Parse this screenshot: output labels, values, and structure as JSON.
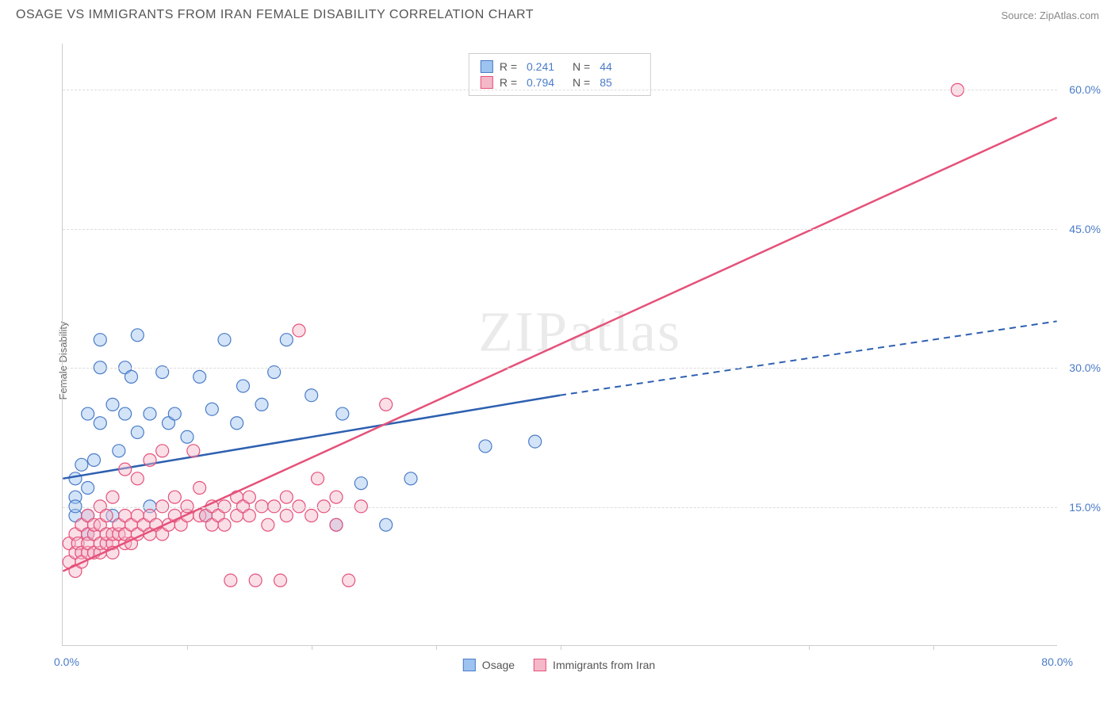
{
  "title": "OSAGE VS IMMIGRANTS FROM IRAN FEMALE DISABILITY CORRELATION CHART",
  "source_label": "Source: ZipAtlas.com",
  "watermark": "ZIPatlas",
  "y_axis_label": "Female Disability",
  "chart": {
    "type": "scatter",
    "xlim": [
      0,
      80
    ],
    "ylim": [
      0,
      65
    ],
    "x_ticks_minor": [
      10,
      20,
      30,
      40,
      60,
      70
    ],
    "x_ticks_major": [
      0,
      80
    ],
    "x_tick_labels": {
      "0": "0.0%",
      "80": "80.0%"
    },
    "y_gridlines": [
      15,
      30,
      45,
      60
    ],
    "y_tick_labels": {
      "15": "15.0%",
      "30": "30.0%",
      "45": "45.0%",
      "60": "60.0%"
    },
    "grid_color": "#dddddd",
    "axis_color": "#cccccc",
    "label_color": "#4a7bc8",
    "background_color": "#ffffff",
    "marker_radius": 8,
    "marker_opacity": 0.45,
    "marker_stroke_width": 1.2
  },
  "series": [
    {
      "name": "Osage",
      "label": "Osage",
      "fill_color": "#9dc3f0",
      "stroke_color": "#4a7bc8",
      "R": "0.241",
      "N": "44",
      "trend": {
        "solid": {
          "x1": 0,
          "y1": 18.0,
          "x2": 40,
          "y2": 27.0
        },
        "dashed": {
          "x1": 40,
          "y1": 27.0,
          "x2": 80,
          "y2": 35.0
        },
        "color": "#2d5fb0",
        "width": 2.5
      },
      "points": [
        [
          1,
          14
        ],
        [
          1,
          16
        ],
        [
          1,
          18
        ],
        [
          1.5,
          19.5
        ],
        [
          1,
          15
        ],
        [
          2,
          12
        ],
        [
          2,
          14
        ],
        [
          2,
          17
        ],
        [
          2,
          25
        ],
        [
          2.5,
          20
        ],
        [
          3,
          24
        ],
        [
          3,
          30
        ],
        [
          3,
          33
        ],
        [
          4,
          26
        ],
        [
          4,
          14
        ],
        [
          4.5,
          21
        ],
        [
          5,
          30
        ],
        [
          5,
          25
        ],
        [
          5.5,
          29
        ],
        [
          6,
          23
        ],
        [
          6,
          33.5
        ],
        [
          7,
          25
        ],
        [
          7,
          15
        ],
        [
          8,
          29.5
        ],
        [
          8.5,
          24
        ],
        [
          9,
          25
        ],
        [
          10,
          22.5
        ],
        [
          11,
          29
        ],
        [
          11.5,
          14
        ],
        [
          12,
          25.5
        ],
        [
          13,
          33
        ],
        [
          14,
          24
        ],
        [
          14.5,
          28
        ],
        [
          16,
          26
        ],
        [
          17,
          29.5
        ],
        [
          18,
          33
        ],
        [
          20,
          27
        ],
        [
          22,
          13
        ],
        [
          22.5,
          25
        ],
        [
          24,
          17.5
        ],
        [
          26,
          13
        ],
        [
          28,
          18
        ],
        [
          34,
          21.5
        ],
        [
          38,
          22
        ]
      ]
    },
    {
      "name": "Immigrants from Iran",
      "label": "Immigrants from Iran",
      "fill_color": "#f5b8c9",
      "stroke_color": "#e5517a",
      "R": "0.794",
      "N": "85",
      "trend": {
        "solid": {
          "x1": 0,
          "y1": 8.0,
          "x2": 80,
          "y2": 57.0
        },
        "dashed": null,
        "color": "#e5517a",
        "width": 2.5
      },
      "points": [
        [
          0.5,
          9
        ],
        [
          0.5,
          11
        ],
        [
          1,
          10
        ],
        [
          1,
          12
        ],
        [
          1,
          8
        ],
        [
          1.2,
          11
        ],
        [
          1.5,
          10
        ],
        [
          1.5,
          13
        ],
        [
          1.5,
          9
        ],
        [
          2,
          10
        ],
        [
          2,
          12
        ],
        [
          2,
          14
        ],
        [
          2,
          11
        ],
        [
          2.5,
          10
        ],
        [
          2.5,
          12
        ],
        [
          2.5,
          13
        ],
        [
          3,
          10
        ],
        [
          3,
          11
        ],
        [
          3,
          13
        ],
        [
          3,
          15
        ],
        [
          3.5,
          11
        ],
        [
          3.5,
          12
        ],
        [
          3.5,
          14
        ],
        [
          4,
          11
        ],
        [
          4,
          12
        ],
        [
          4,
          10
        ],
        [
          4,
          16
        ],
        [
          4.5,
          12
        ],
        [
          4.5,
          13
        ],
        [
          5,
          11
        ],
        [
          5,
          12
        ],
        [
          5,
          14
        ],
        [
          5,
          19
        ],
        [
          5.5,
          13
        ],
        [
          5.5,
          11
        ],
        [
          6,
          12
        ],
        [
          6,
          14
        ],
        [
          6,
          18
        ],
        [
          6.5,
          13
        ],
        [
          7,
          12
        ],
        [
          7,
          14
        ],
        [
          7,
          20
        ],
        [
          7.5,
          13
        ],
        [
          8,
          12
        ],
        [
          8,
          15
        ],
        [
          8,
          21
        ],
        [
          8.5,
          13
        ],
        [
          9,
          14
        ],
        [
          9,
          16
        ],
        [
          9.5,
          13
        ],
        [
          10,
          14
        ],
        [
          10,
          15
        ],
        [
          10.5,
          21
        ],
        [
          11,
          14
        ],
        [
          11,
          17
        ],
        [
          11.5,
          14
        ],
        [
          12,
          15
        ],
        [
          12,
          13
        ],
        [
          12.5,
          14
        ],
        [
          13,
          15
        ],
        [
          13,
          13
        ],
        [
          13.5,
          7
        ],
        [
          14,
          14
        ],
        [
          14,
          16
        ],
        [
          14.5,
          15
        ],
        [
          15,
          14
        ],
        [
          15,
          16
        ],
        [
          15.5,
          7
        ],
        [
          16,
          15
        ],
        [
          16.5,
          13
        ],
        [
          17,
          15
        ],
        [
          17.5,
          7
        ],
        [
          18,
          14
        ],
        [
          18,
          16
        ],
        [
          19,
          34
        ],
        [
          19,
          15
        ],
        [
          20,
          14
        ],
        [
          20.5,
          18
        ],
        [
          21,
          15
        ],
        [
          22,
          16
        ],
        [
          22,
          13
        ],
        [
          23,
          7
        ],
        [
          24,
          15
        ],
        [
          26,
          26
        ],
        [
          72,
          60
        ]
      ]
    }
  ],
  "stat_legend": {
    "R_label": "R =",
    "N_label": "N ="
  },
  "series_legend_labels": [
    "Osage",
    "Immigrants from Iran"
  ]
}
